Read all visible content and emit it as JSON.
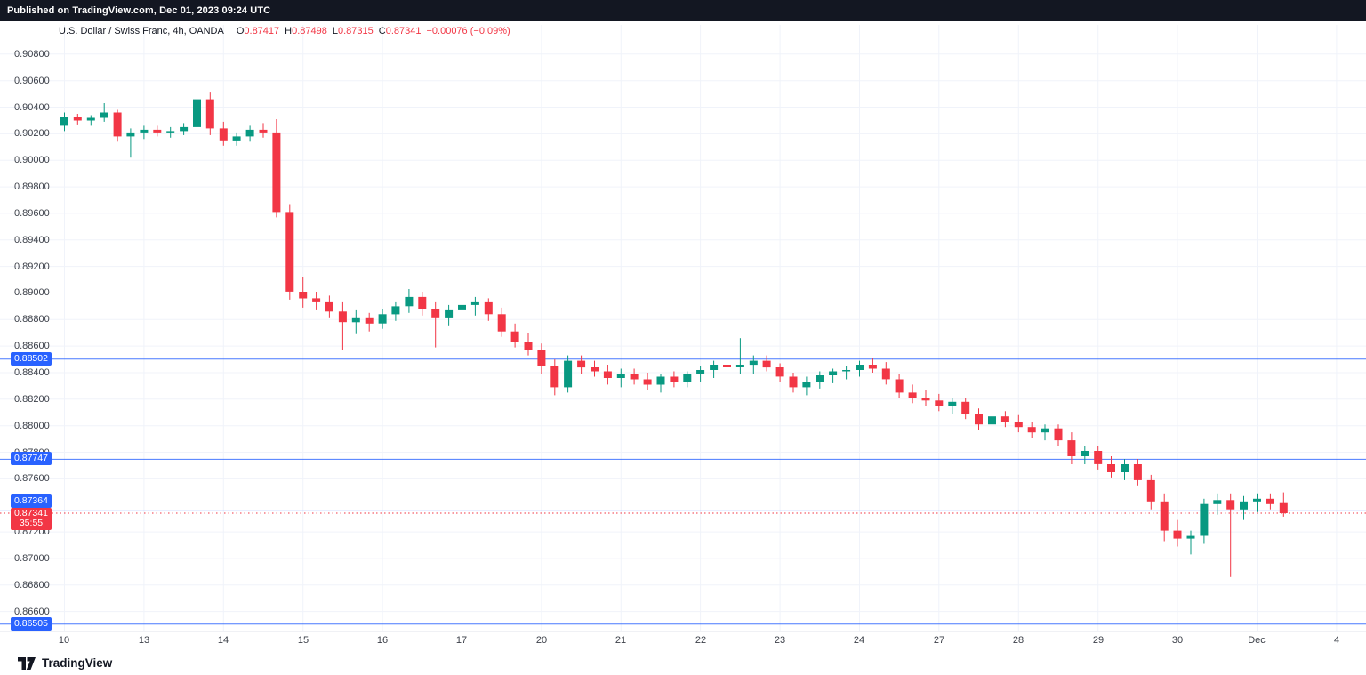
{
  "top_bar": {
    "published_text": "Published on TradingView.com, Dec 01, 2023 09:24 UTC"
  },
  "legend": {
    "symbol": "U.S. Dollar / Swiss Franc, 4h, OANDA",
    "o_label": "O",
    "o": "0.87417",
    "h_label": "H",
    "h": "0.87498",
    "l_label": "L",
    "l": "0.87315",
    "c_label": "C",
    "c": "0.87341",
    "change": "−0.00076 (−0.09%)"
  },
  "colors": {
    "up": "#089981",
    "down": "#F23645",
    "accent_blue": "#2962FF",
    "accent_red": "#F23645",
    "grid": "#f0f3fa",
    "axis_line": "#e0e3eb"
  },
  "footer": {
    "brand": "TradingView"
  },
  "chart_data": {
    "type": "candlestick",
    "title": "U.S. Dollar / Swiss Franc, 4h, OANDA",
    "ohlc_current": {
      "open": 0.87417,
      "high": 0.87498,
      "low": 0.87315,
      "close": 0.87341,
      "change": -0.00076,
      "change_pct": -0.09
    },
    "ylim": [
      0.8645,
      0.9102
    ],
    "grid": true,
    "y_ticks": [
      "0.90800",
      "0.90600",
      "0.90400",
      "0.90200",
      "0.90000",
      "0.89800",
      "0.89600",
      "0.89400",
      "0.89200",
      "0.89000",
      "0.88800",
      "0.88600",
      "0.88400",
      "0.88200",
      "0.88000",
      "0.87800",
      "0.87600",
      "0.87200",
      "0.87000",
      "0.86800",
      "0.86600"
    ],
    "x_labels": [
      {
        "text": "10",
        "index": 0
      },
      {
        "text": "13",
        "index": 6
      },
      {
        "text": "14",
        "index": 12
      },
      {
        "text": "15",
        "index": 18
      },
      {
        "text": "16",
        "index": 24
      },
      {
        "text": "17",
        "index": 30
      },
      {
        "text": "20",
        "index": 36
      },
      {
        "text": "21",
        "index": 42
      },
      {
        "text": "22",
        "index": 48
      },
      {
        "text": "23",
        "index": 54
      },
      {
        "text": "24",
        "index": 60
      },
      {
        "text": "27",
        "index": 66
      },
      {
        "text": "28",
        "index": 72
      },
      {
        "text": "29",
        "index": 78
      },
      {
        "text": "30",
        "index": 84
      },
      {
        "text": "Dec",
        "index": 90
      },
      {
        "text": "4",
        "index": 96
      }
    ],
    "price_lines": [
      {
        "price": 0.88502,
        "label": "0.88502",
        "label_dy": 0
      },
      {
        "price": 0.87747,
        "label": "0.87747",
        "label_dy": 0
      },
      {
        "price": 0.87364,
        "label": "0.87364",
        "label_dy": -10
      },
      {
        "price": 0.86505,
        "label": "0.86505",
        "label_dy": 0
      }
    ],
    "current_price_line": {
      "price": 0.87341,
      "label": "0.87341",
      "countdown": "35:55"
    },
    "candles": [
      [
        0.9026,
        0.9036,
        0.9022,
        0.9033
      ],
      [
        0.9033,
        0.9035,
        0.9027,
        0.903
      ],
      [
        0.903,
        0.9034,
        0.9026,
        0.9032
      ],
      [
        0.9032,
        0.9043,
        0.9029,
        0.9036
      ],
      [
        0.9036,
        0.9038,
        0.9014,
        0.9018
      ],
      [
        0.9018,
        0.9024,
        0.9002,
        0.9021
      ],
      [
        0.9021,
        0.9026,
        0.9016,
        0.9023
      ],
      [
        0.9023,
        0.9026,
        0.9018,
        0.9021
      ],
      [
        0.9021,
        0.9025,
        0.9017,
        0.9022
      ],
      [
        0.9022,
        0.9028,
        0.9019,
        0.9025
      ],
      [
        0.9025,
        0.9053,
        0.9022,
        0.9046
      ],
      [
        0.9046,
        0.9051,
        0.9019,
        0.9024
      ],
      [
        0.9024,
        0.9029,
        0.9011,
        0.9015
      ],
      [
        0.9015,
        0.9021,
        0.9011,
        0.9018
      ],
      [
        0.9018,
        0.9026,
        0.9014,
        0.9023
      ],
      [
        0.9023,
        0.9028,
        0.9017,
        0.9021
      ],
      [
        0.9021,
        0.9031,
        0.8957,
        0.8961
      ],
      [
        0.8961,
        0.8967,
        0.8895,
        0.8901
      ],
      [
        0.8901,
        0.8912,
        0.8889,
        0.8896
      ],
      [
        0.8896,
        0.8901,
        0.8887,
        0.8893
      ],
      [
        0.8893,
        0.8898,
        0.8881,
        0.8886
      ],
      [
        0.8886,
        0.8893,
        0.8857,
        0.8878
      ],
      [
        0.8878,
        0.8887,
        0.8869,
        0.8881
      ],
      [
        0.8881,
        0.8885,
        0.8871,
        0.8877
      ],
      [
        0.8877,
        0.8888,
        0.8873,
        0.8884
      ],
      [
        0.8884,
        0.8893,
        0.8879,
        0.889
      ],
      [
        0.889,
        0.8903,
        0.8885,
        0.8897
      ],
      [
        0.8897,
        0.8901,
        0.8883,
        0.8888
      ],
      [
        0.8888,
        0.8893,
        0.8859,
        0.8881
      ],
      [
        0.8881,
        0.8891,
        0.8875,
        0.8887
      ],
      [
        0.8887,
        0.8895,
        0.8882,
        0.8891
      ],
      [
        0.8891,
        0.8897,
        0.8883,
        0.8893
      ],
      [
        0.8893,
        0.8896,
        0.8879,
        0.8884
      ],
      [
        0.8884,
        0.8889,
        0.8867,
        0.8871
      ],
      [
        0.8871,
        0.8877,
        0.8859,
        0.8863
      ],
      [
        0.8863,
        0.887,
        0.8853,
        0.8857
      ],
      [
        0.8857,
        0.8862,
        0.8839,
        0.8845
      ],
      [
        0.8845,
        0.885,
        0.8823,
        0.8829
      ],
      [
        0.8829,
        0.8853,
        0.8825,
        0.8849
      ],
      [
        0.8849,
        0.8853,
        0.8839,
        0.8844
      ],
      [
        0.8844,
        0.8849,
        0.8837,
        0.8841
      ],
      [
        0.8841,
        0.8846,
        0.8831,
        0.8836
      ],
      [
        0.8836,
        0.8843,
        0.8829,
        0.8839
      ],
      [
        0.8839,
        0.8843,
        0.8831,
        0.8835
      ],
      [
        0.8835,
        0.884,
        0.8827,
        0.8831
      ],
      [
        0.8831,
        0.8839,
        0.8825,
        0.8837
      ],
      [
        0.8837,
        0.8841,
        0.8829,
        0.8833
      ],
      [
        0.8833,
        0.8841,
        0.8829,
        0.8839
      ],
      [
        0.8839,
        0.8845,
        0.8833,
        0.8842
      ],
      [
        0.8842,
        0.8849,
        0.8836,
        0.8846
      ],
      [
        0.8846,
        0.8851,
        0.884,
        0.8844
      ],
      [
        0.8844,
        0.8866,
        0.8839,
        0.8846
      ],
      [
        0.8846,
        0.8853,
        0.8839,
        0.8849
      ],
      [
        0.8849,
        0.8853,
        0.8841,
        0.8844
      ],
      [
        0.8844,
        0.8847,
        0.8833,
        0.8837
      ],
      [
        0.8837,
        0.884,
        0.8825,
        0.8829
      ],
      [
        0.8829,
        0.8837,
        0.8823,
        0.8833
      ],
      [
        0.8833,
        0.8841,
        0.8828,
        0.8838
      ],
      [
        0.8838,
        0.8843,
        0.8832,
        0.8841
      ],
      [
        0.8841,
        0.8845,
        0.8835,
        0.8842
      ],
      [
        0.8842,
        0.8849,
        0.8837,
        0.8846
      ],
      [
        0.8846,
        0.8851,
        0.884,
        0.8843
      ],
      [
        0.8843,
        0.8848,
        0.8831,
        0.8835
      ],
      [
        0.8835,
        0.8839,
        0.8821,
        0.8825
      ],
      [
        0.8825,
        0.8831,
        0.8817,
        0.8821
      ],
      [
        0.8821,
        0.8827,
        0.8815,
        0.8819
      ],
      [
        0.8819,
        0.8824,
        0.8811,
        0.8815
      ],
      [
        0.8815,
        0.8821,
        0.8809,
        0.8818
      ],
      [
        0.8818,
        0.8821,
        0.8805,
        0.8809
      ],
      [
        0.8809,
        0.8813,
        0.8797,
        0.8801
      ],
      [
        0.8801,
        0.8811,
        0.8796,
        0.8807
      ],
      [
        0.8807,
        0.8811,
        0.8799,
        0.8803
      ],
      [
        0.8803,
        0.8808,
        0.8795,
        0.8799
      ],
      [
        0.8799,
        0.8803,
        0.8791,
        0.8795
      ],
      [
        0.8795,
        0.8801,
        0.8789,
        0.8798
      ],
      [
        0.8798,
        0.8801,
        0.8785,
        0.8789
      ],
      [
        0.8789,
        0.8795,
        0.8771,
        0.8777
      ],
      [
        0.8777,
        0.8785,
        0.8771,
        0.8781
      ],
      [
        0.8781,
        0.8785,
        0.8767,
        0.8771
      ],
      [
        0.8771,
        0.8777,
        0.8761,
        0.8765
      ],
      [
        0.8765,
        0.8775,
        0.8759,
        0.8771
      ],
      [
        0.8771,
        0.8775,
        0.8755,
        0.8759
      ],
      [
        0.8759,
        0.8763,
        0.8737,
        0.8743
      ],
      [
        0.8743,
        0.8749,
        0.8713,
        0.8721
      ],
      [
        0.8721,
        0.8729,
        0.8709,
        0.8715
      ],
      [
        0.8715,
        0.8721,
        0.8703,
        0.8717
      ],
      [
        0.8717,
        0.8745,
        0.8711,
        0.8741
      ],
      [
        0.8741,
        0.8749,
        0.8733,
        0.8744
      ],
      [
        0.8744,
        0.8749,
        0.8686,
        0.8737
      ],
      [
        0.8737,
        0.8747,
        0.8729,
        0.8743
      ],
      [
        0.8743,
        0.8749,
        0.8735,
        0.8745
      ],
      [
        0.8745,
        0.8749,
        0.8737,
        0.8741
      ],
      [
        0.87417,
        0.87498,
        0.87315,
        0.87341
      ]
    ]
  }
}
